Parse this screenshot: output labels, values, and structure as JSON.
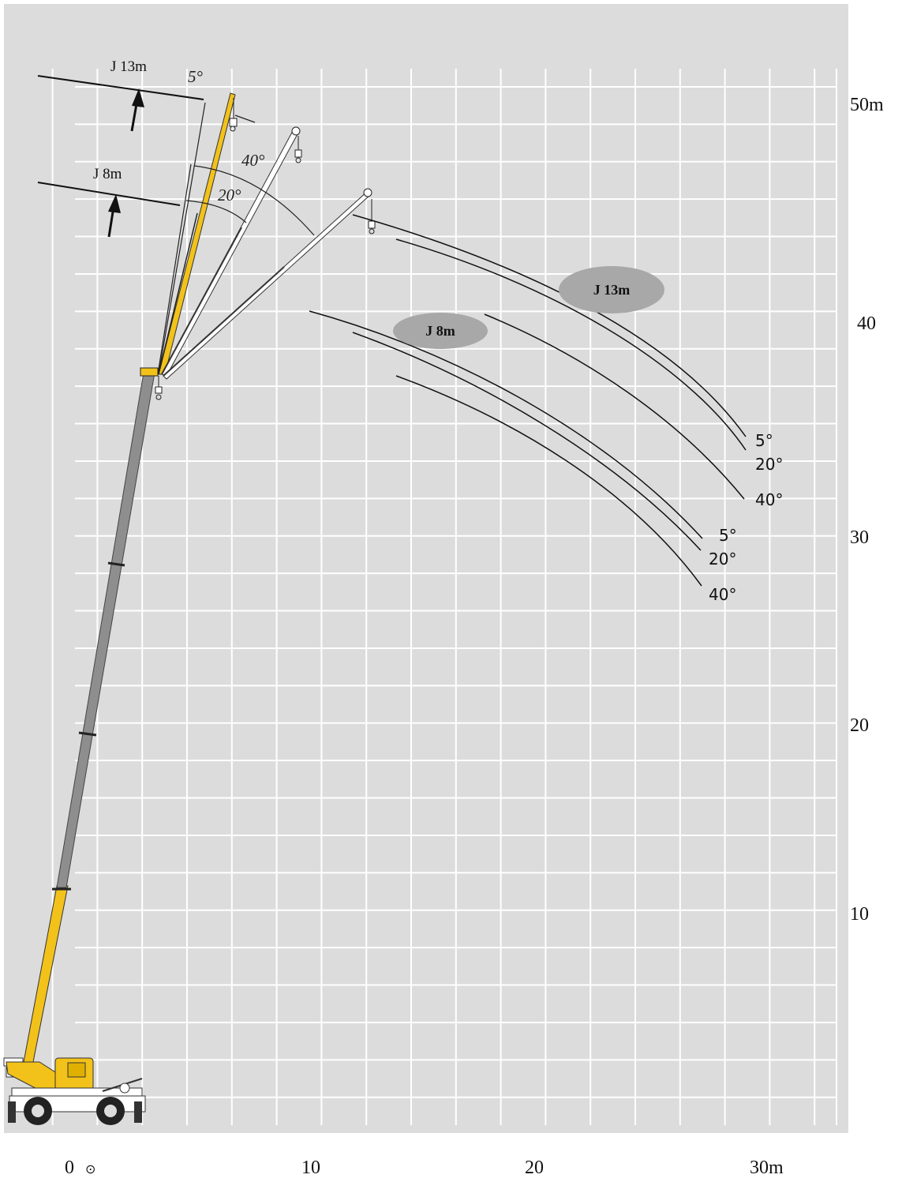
{
  "colors": {
    "background": "#dcdcdc",
    "grid": "#ffffff",
    "boom_yellow": "#f2c21a",
    "boom_gray": "#8e8e8e",
    "badge": "#a8a8a8",
    "line": "#111111"
  },
  "x_axis": {
    "ticks": [
      {
        "value": 0,
        "label": "0"
      },
      {
        "value": 10,
        "label": "10"
      },
      {
        "value": 20,
        "label": "20"
      },
      {
        "value": 30,
        "label": "30m"
      }
    ],
    "origin_marker": "⊙"
  },
  "y_axis": {
    "ticks": [
      {
        "value": 10,
        "label": "10"
      },
      {
        "value": 20,
        "label": "20"
      },
      {
        "value": 30,
        "label": "30"
      },
      {
        "value": 40,
        "label": "40"
      },
      {
        "value": 50,
        "label": "50m"
      }
    ]
  },
  "jib_labels": {
    "j13_pointer": "J 13m",
    "j8_pointer": "J 8m",
    "j13_badge": "J 13m",
    "j8_badge": "J 8m"
  },
  "offset_labels": {
    "boom_5": "5°",
    "boom_40": "40°",
    "boom_20": "20°"
  },
  "curve_labels": {
    "j13_5": "5°",
    "j13_20": "20°",
    "j13_40": "40°",
    "j8_5": "5°",
    "j8_20": "20°",
    "j8_40": "40°"
  },
  "icons": [
    "crane-truck-icon",
    "hook-block-icon",
    "up-arrow-icon"
  ]
}
